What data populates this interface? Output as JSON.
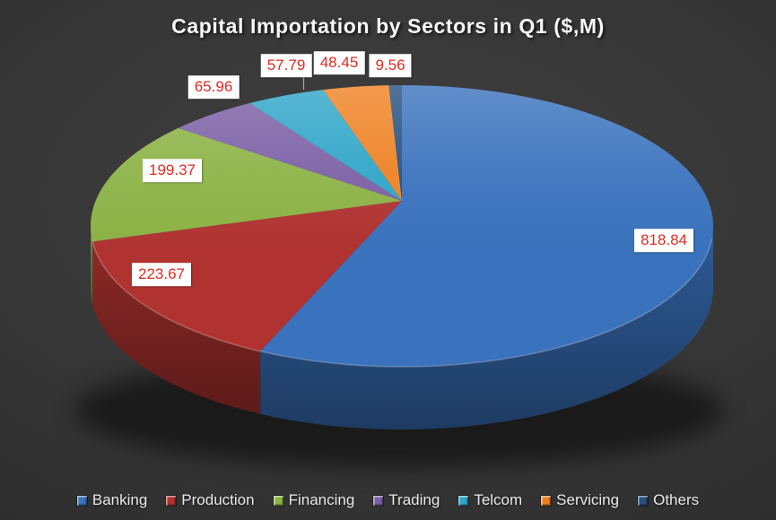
{
  "chart_data": {
    "type": "pie",
    "style": "3d",
    "title": "Capital Importation by Sectors in Q1 ($,M)",
    "categories": [
      "Banking",
      "Production",
      "Financing",
      "Trading",
      "Telcom",
      "Servicing",
      "Others"
    ],
    "values": [
      818.84,
      223.67,
      199.37,
      65.96,
      57.79,
      48.45,
      9.56
    ],
    "colors": [
      "#3a72bd",
      "#b03331",
      "#8cb246",
      "#7b5fa5",
      "#2ea5c8",
      "#ee8122",
      "#26507f"
    ],
    "data_label_color": "#e22a21",
    "data_label_bg": "#ffffff",
    "legend_position": "bottom",
    "background": {
      "inner": "#3d3d3d",
      "outer": "#232323"
    }
  }
}
